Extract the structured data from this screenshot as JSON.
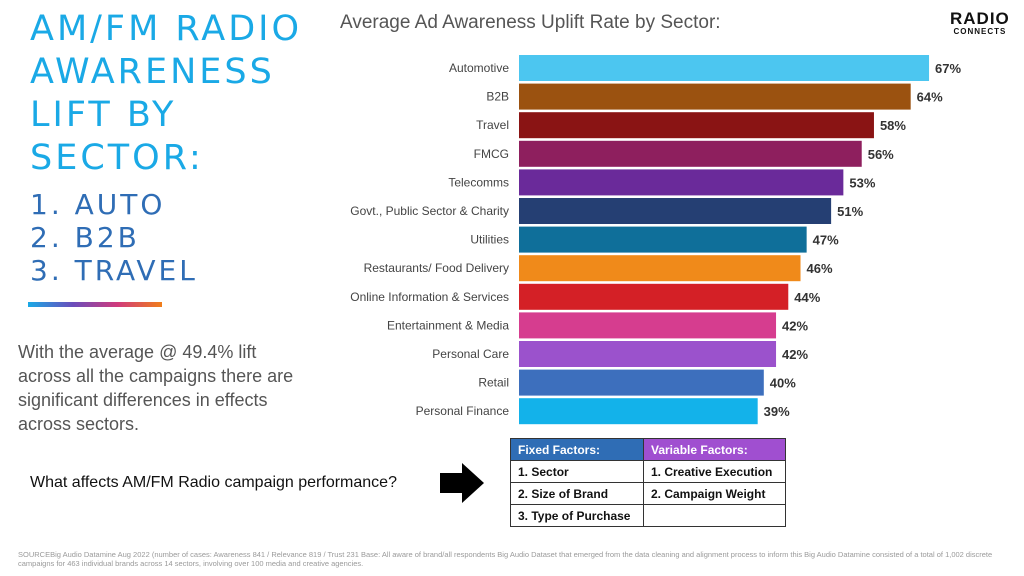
{
  "headline": {
    "lines": [
      "AM/FM RADIO",
      "AWARENESS",
      "LIFT BY",
      "SECTOR:"
    ],
    "top_list": [
      "1. AUTO",
      "2. B2B",
      "3. TRAVEL"
    ]
  },
  "body_text": "With the average @ 49.4% lift across all the campaigns there are significant differences in effects across sectors.",
  "logo": {
    "line1": "RADIO",
    "line2": "CONNECTS"
  },
  "chart_data": {
    "type": "bar",
    "orientation": "horizontal",
    "title": "Average Ad Awareness Uplift Rate by Sector:",
    "categories": [
      "Automotive",
      "B2B",
      "Travel",
      "FMCG",
      "Telecomms",
      "Govt., Public Sector & Charity",
      "Utilities",
      "Restaurants/ Food Delivery",
      "Online Information & Services",
      "Entertainment & Media",
      "Personal Care",
      "Retail",
      "Personal Finance"
    ],
    "values": [
      67,
      64,
      58,
      56,
      53,
      51,
      47,
      46,
      44,
      42,
      42,
      40,
      39
    ],
    "value_labels": [
      "67%",
      "64%",
      "58%",
      "56%",
      "53%",
      "51%",
      "47%",
      "46%",
      "44%",
      "42%",
      "42%",
      "40%",
      "39%"
    ],
    "colors": [
      "#4cc6f0",
      "#9b5210",
      "#8a1414",
      "#8e1f5e",
      "#6a2a9a",
      "#253f73",
      "#0f6f9a",
      "#f08a1a",
      "#d42026",
      "#d63d8f",
      "#9b52cc",
      "#3d6fbd",
      "#13b2ea"
    ],
    "grid": false,
    "legend": "none"
  },
  "question": "What affects AM/FM Radio campaign performance?",
  "factors": {
    "fixed_header": "Fixed Factors:",
    "variable_header": "Variable Factors:",
    "fixed": [
      "1. Sector",
      "2. Size of Brand",
      "3. Type of Purchase"
    ],
    "variable": [
      "1. Creative Execution",
      "2. Campaign Weight",
      ""
    ]
  },
  "footnote": "SOURCEBig Audio Datamine Aug 2022  (number of cases: Awareness 841 / Relevance 819 / Trust 231 Base: All aware of brand/all respondents Big Audio Dataset that emerged from the data cleaning and alignment process to inform this Big Audio Datamine consisted of a total of 1,002 discrete campaigns for 463 individual brands across 14 sectors, involving over 100 media and creative agencies."
}
